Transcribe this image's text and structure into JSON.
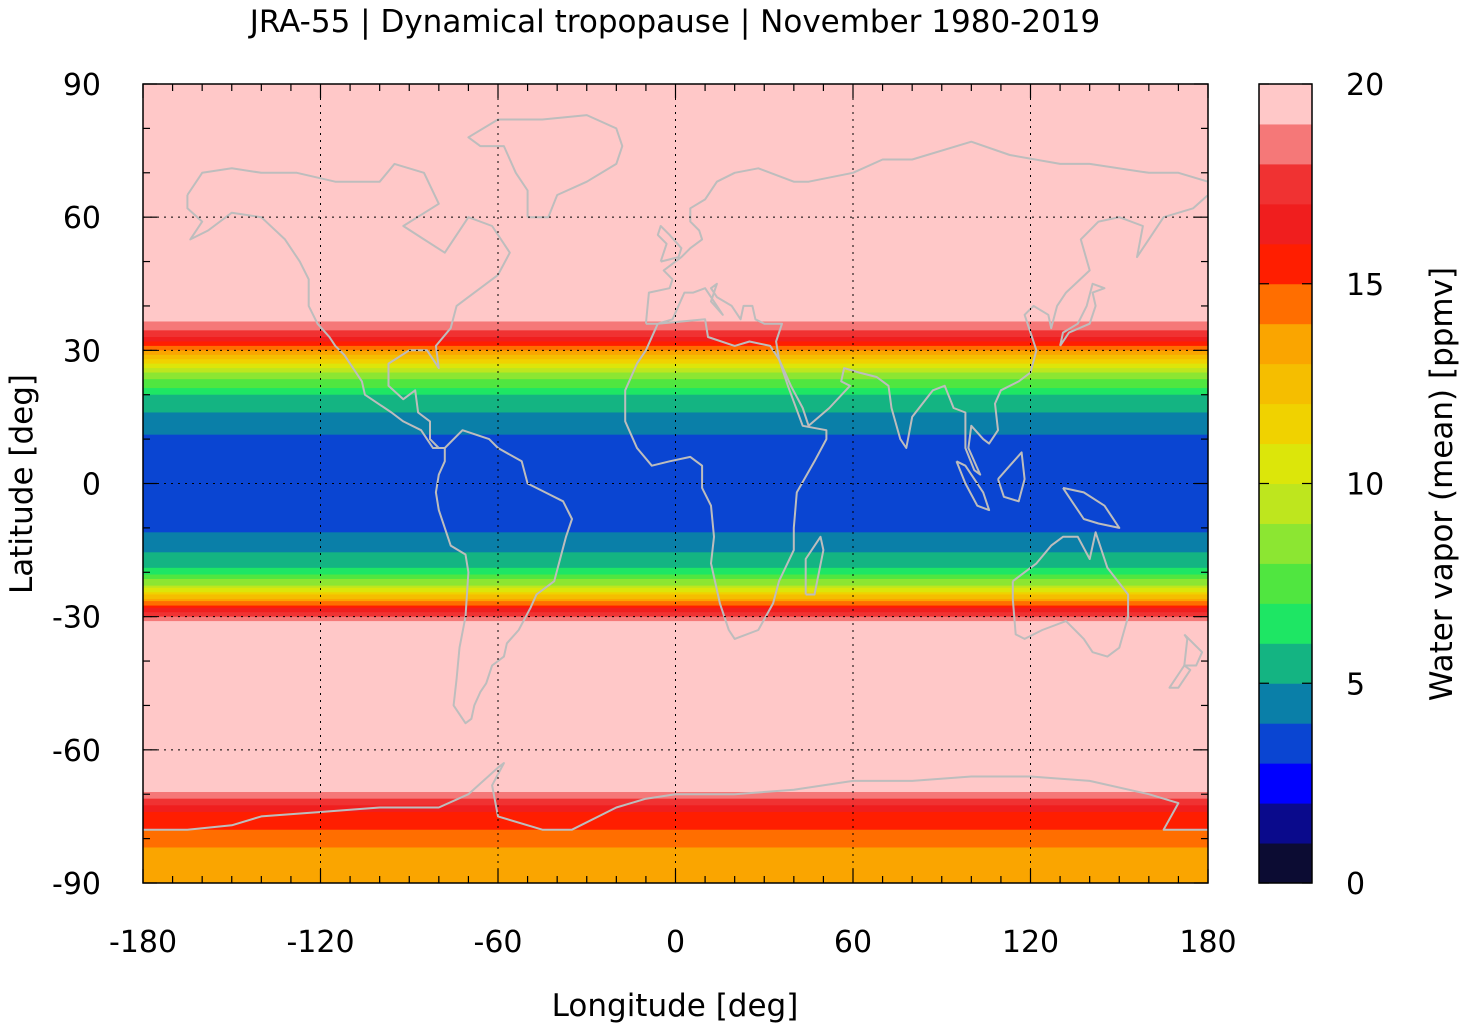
{
  "chart_data": {
    "type": "heatmap",
    "title": "JRA-55 | Dynamical tropopause | November 1980-2019",
    "xlabel": "Longitude [deg]",
    "ylabel": "Latitude [deg]",
    "colorbar_label": "Water vapor (mean) [ppmv]",
    "xlim": [
      -180,
      180
    ],
    "ylim": [
      -90,
      90
    ],
    "x_ticks": [
      -180,
      -120,
      -60,
      0,
      60,
      120,
      180
    ],
    "y_ticks": [
      90,
      60,
      30,
      0,
      -30,
      -60,
      -90
    ],
    "colorbar_range": [
      0,
      20
    ],
    "colorbar_ticks": [
      0,
      5,
      10,
      15,
      20
    ],
    "grid": true,
    "colorbar_levels": [
      {
        "min": 0,
        "max": 1,
        "color": "#0c0c33"
      },
      {
        "min": 1,
        "max": 2,
        "color": "#0a0a8c"
      },
      {
        "min": 2,
        "max": 3,
        "color": "#0000ff"
      },
      {
        "min": 3,
        "max": 4,
        "color": "#0a45d2"
      },
      {
        "min": 4,
        "max": 5,
        "color": "#0a7fa8"
      },
      {
        "min": 5,
        "max": 6,
        "color": "#14b482"
      },
      {
        "min": 6,
        "max": 7,
        "color": "#1ee664"
      },
      {
        "min": 7,
        "max": 8,
        "color": "#50e640"
      },
      {
        "min": 8,
        "max": 9,
        "color": "#8ce632"
      },
      {
        "min": 9,
        "max": 10,
        "color": "#bee61e"
      },
      {
        "min": 10,
        "max": 11,
        "color": "#dce60a"
      },
      {
        "min": 11,
        "max": 12,
        "color": "#f0d200"
      },
      {
        "min": 12,
        "max": 13,
        "color": "#f5be00"
      },
      {
        "min": 13,
        "max": 14,
        "color": "#faa500"
      },
      {
        "min": 14,
        "max": 15,
        "color": "#ff6e00"
      },
      {
        "min": 15,
        "max": 16,
        "color": "#ff1e00"
      },
      {
        "min": 16,
        "max": 17,
        "color": "#f01e1e"
      },
      {
        "min": 17,
        "max": 18,
        "color": "#f03232"
      },
      {
        "min": 18,
        "max": 19,
        "color": "#f57878"
      },
      {
        "min": 19,
        "max": 20,
        "color": "#ffc8c8"
      }
    ],
    "field_profile": [
      {
        "lat": 90,
        "value": 20
      },
      {
        "lat": 38,
        "value": 20
      },
      {
        "lat": 33,
        "value": 17
      },
      {
        "lat": 29,
        "value": 13
      },
      {
        "lat": 25,
        "value": 9
      },
      {
        "lat": 20,
        "value": 6
      },
      {
        "lat": 14,
        "value": 4.5
      },
      {
        "lat": 8,
        "value": 3.5
      },
      {
        "lat": 0,
        "value": 3.2
      },
      {
        "lat": -8,
        "value": 3.5
      },
      {
        "lat": -14,
        "value": 4.5
      },
      {
        "lat": -19,
        "value": 6
      },
      {
        "lat": -23,
        "value": 9
      },
      {
        "lat": -26,
        "value": 13
      },
      {
        "lat": -29,
        "value": 17
      },
      {
        "lat": -32,
        "value": 20
      },
      {
        "lat": -68,
        "value": 20
      },
      {
        "lat": -71,
        "value": 18
      },
      {
        "lat": -74,
        "value": 16
      },
      {
        "lat": -78,
        "value": 15
      },
      {
        "lat": -84,
        "value": 13.5
      },
      {
        "lat": -90,
        "value": 13.5
      }
    ]
  }
}
